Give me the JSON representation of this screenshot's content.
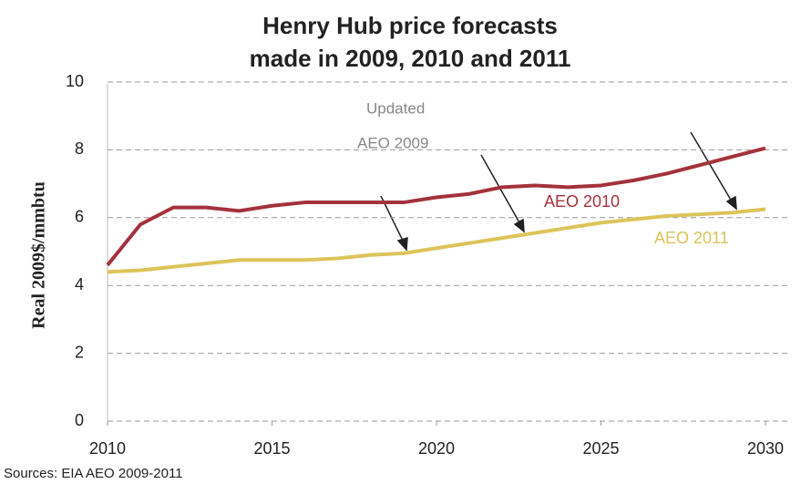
{
  "chart_data": {
    "type": "line",
    "title": [
      "Henry Hub price forecasts",
      "made in 2009, 2010 and 2011"
    ],
    "ylabel": "Real 2009$/mmbtu",
    "source": "Sources: EIA AEO 2009-2011",
    "annotation": [
      "Updated",
      "AEO 2009"
    ],
    "x": [
      2010,
      2011,
      2012,
      2013,
      2014,
      2015,
      2016,
      2017,
      2018,
      2019,
      2020,
      2021,
      2022,
      2023,
      2024,
      2025,
      2026,
      2027,
      2028,
      2029,
      2030
    ],
    "series": [
      {
        "name": "AEO 2010",
        "color": "#a3323c",
        "values": [
          4.6,
          5.8,
          6.3,
          6.3,
          6.2,
          6.35,
          6.45,
          6.45,
          6.45,
          6.45,
          6.6,
          6.7,
          6.9,
          6.95,
          6.9,
          6.95,
          7.1,
          7.3,
          7.55,
          7.8,
          8.05
        ]
      },
      {
        "name": "AEO 2011",
        "color": "#dcc45a",
        "values": [
          4.4,
          4.45,
          4.55,
          4.65,
          4.75,
          4.75,
          4.75,
          4.8,
          4.9,
          4.95,
          5.1,
          5.25,
          5.4,
          5.55,
          5.7,
          5.85,
          5.95,
          6.05,
          6.1,
          6.15,
          6.25
        ]
      }
    ],
    "xlim": [
      2010,
      2030
    ],
    "xticks": [
      2010,
      2015,
      2020,
      2025,
      2030
    ],
    "ylim": [
      0,
      10
    ],
    "yticks": [
      0,
      2,
      4,
      6,
      8,
      10
    ],
    "grid": true
  }
}
